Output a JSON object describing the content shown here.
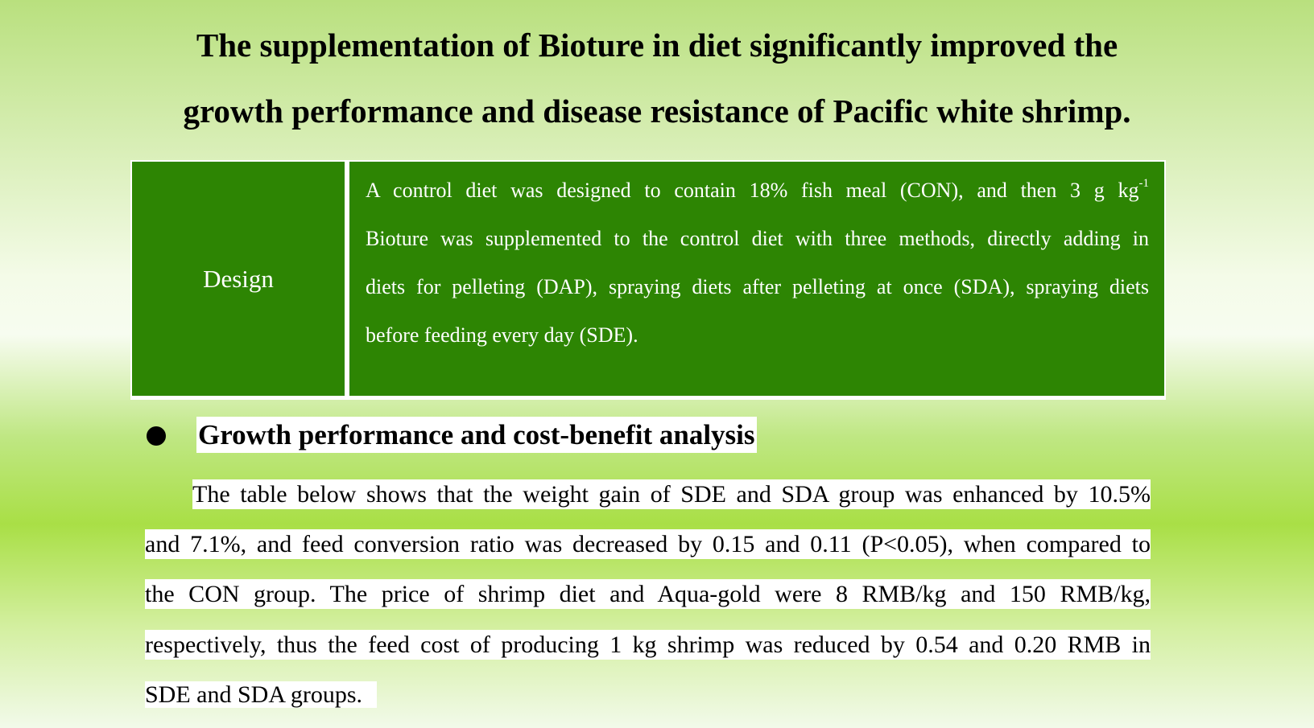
{
  "title": {
    "line1": "The supplementation of Bioture in diet significantly improved the",
    "line2": "growth performance and disease resistance of Pacific white shrimp."
  },
  "design": {
    "label": "Design",
    "line1": "A control diet was designed to contain 18% fish meal (CON), and then 3 g kg",
    "line1_sup": "-1",
    "line2": "Bioture was supplemented to the control diet with three methods, directly adding in",
    "line3": "diets for pelleting (DAP), spraying diets after pelleting at once (SDA), spraying diets",
    "line4": "before feeding every day (SDE)."
  },
  "section": {
    "heading": "Growth performance and cost-benefit analysis",
    "lines": [
      "The table below shows that the weight gain of SDE and SDA group was enhanced by 10.5%",
      "and 7.1%, and feed conversion ratio was decreased by 0.15 and 0.11 (P<0.05), when compared to",
      "the CON group. The price of shrimp diet and Aqua-gold were 8 RMB/kg and 150 RMB/kg,",
      "respectively, thus the feed cost of producing 1 kg shrimp was reduced by 0.54 and 0.20 RMB in",
      "SDE and SDA groups."
    ]
  },
  "colors": {
    "table_fill": "#2d8503",
    "background_green": "#a9df46"
  }
}
